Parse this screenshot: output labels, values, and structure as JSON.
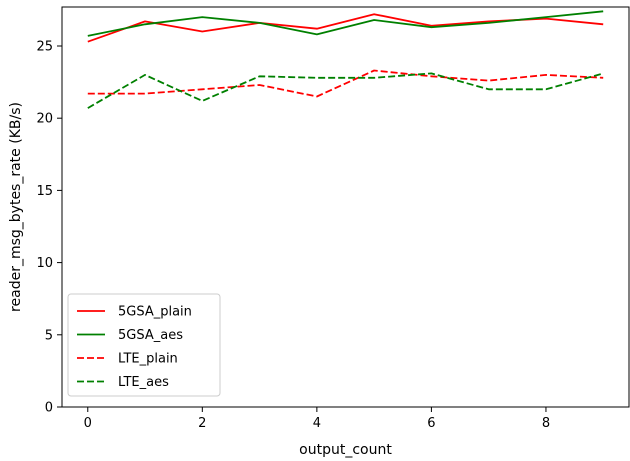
{
  "chart_data": {
    "type": "line",
    "title": "",
    "xlabel": "output_count",
    "ylabel": "reader_msg_bytes_rate (KB/s)",
    "x": [
      0,
      1,
      2,
      3,
      4,
      5,
      6,
      7,
      8,
      9
    ],
    "xlim": [
      -0.45,
      9.45
    ],
    "ylim": [
      0,
      27.7
    ],
    "xticks": [
      0,
      2,
      4,
      6,
      8
    ],
    "yticks": [
      0,
      5,
      10,
      15,
      20,
      25
    ],
    "grid": false,
    "legend_position": "lower-left",
    "series": [
      {
        "name": "5GSA_plain",
        "color": "#ff0000",
        "linestyle": "solid",
        "values": [
          25.3,
          26.7,
          26.0,
          26.6,
          26.2,
          27.2,
          26.4,
          26.7,
          26.9,
          26.5
        ]
      },
      {
        "name": "5GSA_aes",
        "color": "#008000",
        "linestyle": "solid",
        "values": [
          25.7,
          26.5,
          27.0,
          26.6,
          25.8,
          26.8,
          26.3,
          26.6,
          27.0,
          27.4
        ]
      },
      {
        "name": "LTE_plain",
        "color": "#ff0000",
        "linestyle": "dashed",
        "values": [
          21.7,
          21.7,
          22.0,
          22.3,
          21.5,
          23.3,
          22.9,
          22.6,
          23.0,
          22.8
        ]
      },
      {
        "name": "LTE_aes",
        "color": "#008000",
        "linestyle": "dashed",
        "values": [
          20.7,
          23.0,
          21.2,
          22.9,
          22.8,
          22.8,
          23.1,
          22.0,
          22.0,
          23.1
        ]
      }
    ]
  }
}
